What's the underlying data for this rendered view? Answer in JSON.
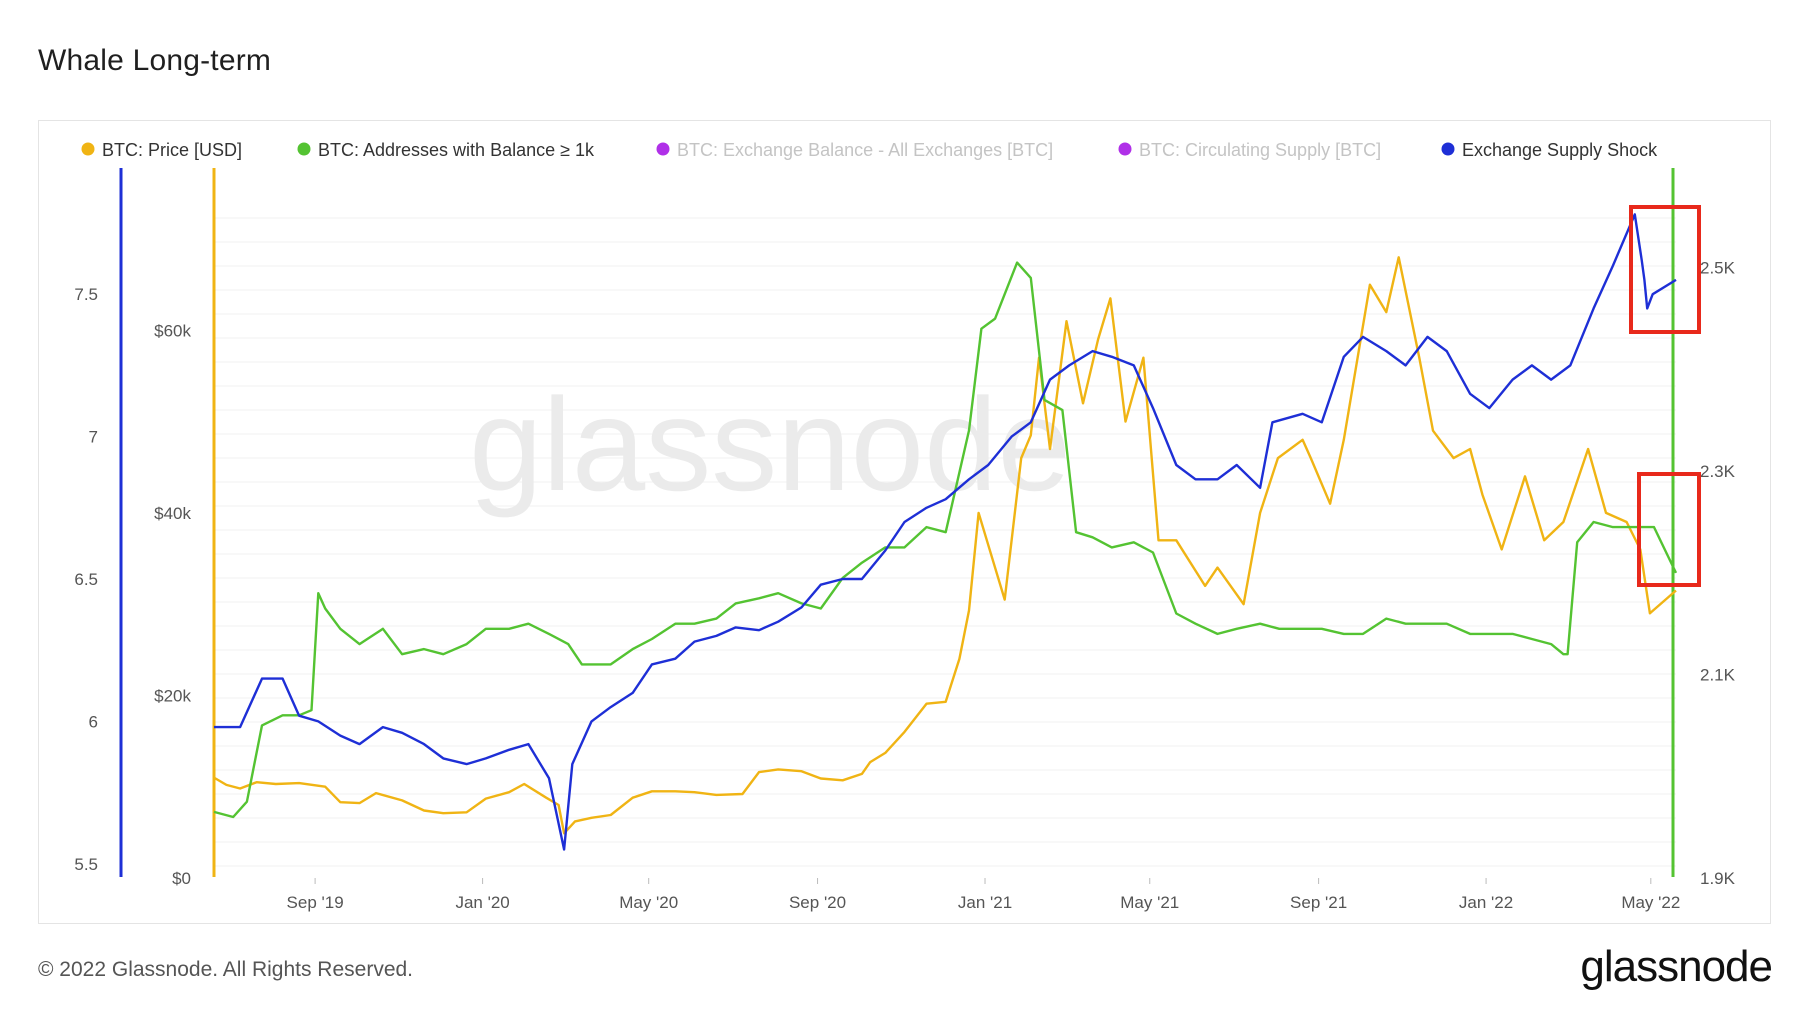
{
  "title": "Whale Long-term",
  "footer": "© 2022 Glassnode. All Rights Reserved.",
  "brand": "glassnode",
  "watermark": "glassnode",
  "chart_data": {
    "type": "line",
    "legend": [
      {
        "label": "BTC: Price [USD]",
        "color": "#f0b414",
        "active": true
      },
      {
        "label": "BTC: Addresses with Balance ≥ 1k",
        "color": "#54c332",
        "active": true
      },
      {
        "label": "BTC: Exchange Balance - All Exchanges [BTC]",
        "color": "#b030e8",
        "active": false
      },
      {
        "label": "BTC: Circulating Supply [BTC]",
        "color": "#b030e8",
        "active": false
      },
      {
        "label": "Exchange Supply Shock",
        "color": "#1e2fd6",
        "active": true
      }
    ],
    "x_ticks": [
      "Sep '19",
      "Jan '20",
      "May '20",
      "Sep '20",
      "Jan '21",
      "May '21",
      "Sep '21",
      "Jan '22",
      "May '22"
    ],
    "axes": {
      "shock": {
        "ticks": [
          "7.5",
          "7",
          "6.5",
          "6",
          "5.5"
        ],
        "range": [
          5.45,
          7.95
        ],
        "color": "#1e2fd6"
      },
      "price": {
        "ticks": [
          "$60k",
          "$40k",
          "$20k",
          "$0"
        ],
        "range": [
          0,
          78000
        ],
        "color": "#f0b414"
      },
      "addresses": {
        "ticks": [
          "2.5K",
          "2.3K",
          "2.1K",
          "1.9K"
        ],
        "range": [
          1900,
          2600
        ],
        "color": "#54c332"
      }
    },
    "x_range": [
      "2019-07-01",
      "2022-05-31"
    ],
    "series": [
      {
        "name": "BTC: Price [USD]",
        "axis": "price",
        "color": "#f0b414",
        "x": [
          "2019-07-01",
          "2019-07-10",
          "2019-07-20",
          "2019-08-01",
          "2019-08-15",
          "2019-09-01",
          "2019-09-20",
          "2019-10-01",
          "2019-10-15",
          "2019-10-27",
          "2019-11-15",
          "2019-12-01",
          "2019-12-15",
          "2020-01-01",
          "2020-01-15",
          "2020-02-01",
          "2020-02-12",
          "2020-02-28",
          "2020-03-08",
          "2020-03-12",
          "2020-03-20",
          "2020-04-01",
          "2020-04-15",
          "2020-05-01",
          "2020-05-15",
          "2020-06-01",
          "2020-06-15",
          "2020-07-01",
          "2020-07-20",
          "2020-08-01",
          "2020-08-15",
          "2020-09-01",
          "2020-09-15",
          "2020-10-01",
          "2020-10-15",
          "2020-10-21",
          "2020-11-01",
          "2020-11-15",
          "2020-12-01",
          "2020-12-15",
          "2020-12-25",
          "2021-01-01",
          "2021-01-08",
          "2021-01-15",
          "2021-01-27",
          "2021-02-08",
          "2021-02-15",
          "2021-02-21",
          "2021-03-01",
          "2021-03-13",
          "2021-03-25",
          "2021-04-05",
          "2021-04-14",
          "2021-04-25",
          "2021-05-08",
          "2021-05-19",
          "2021-06-01",
          "2021-06-22",
          "2021-07-01",
          "2021-07-20",
          "2021-08-01",
          "2021-08-14",
          "2021-09-01",
          "2021-09-07",
          "2021-09-21",
          "2021-10-01",
          "2021-10-20",
          "2021-11-01",
          "2021-11-10",
          "2021-11-25",
          "2021-12-05",
          "2021-12-20",
          "2022-01-01",
          "2022-01-10",
          "2022-01-24",
          "2022-02-10",
          "2022-02-24",
          "2022-03-10",
          "2022-03-28",
          "2022-04-10",
          "2022-04-25",
          "2022-05-05",
          "2022-05-12",
          "2022-05-31"
        ],
        "values": [
          11000,
          10200,
          9800,
          10500,
          10300,
          10400,
          10000,
          8300,
          8200,
          9300,
          8500,
          7400,
          7100,
          7200,
          8700,
          9400,
          10300,
          8800,
          8000,
          4900,
          6200,
          6600,
          6900,
          8800,
          9500,
          9500,
          9400,
          9100,
          9200,
          11600,
          11900,
          11700,
          10900,
          10700,
          11400,
          12700,
          13700,
          16000,
          19100,
          19300,
          24000,
          29300,
          40000,
          36500,
          30500,
          46000,
          48500,
          57000,
          47000,
          61000,
          52000,
          59000,
          63500,
          50000,
          57000,
          37000,
          37000,
          32000,
          34000,
          30000,
          40000,
          46000,
          48000,
          46000,
          41000,
          48000,
          65000,
          62000,
          68000,
          57000,
          49000,
          46000,
          47000,
          42000,
          36000,
          44000,
          37000,
          39000,
          47000,
          40000,
          39000,
          36000,
          29000,
          31500
        ]
      },
      {
        "name": "BTC: Addresses with Balance ≥ 1k",
        "axis": "addresses",
        "color": "#54c332",
        "x": [
          "2019-07-01",
          "2019-07-15",
          "2019-07-25",
          "2019-08-05",
          "2019-08-20",
          "2019-09-01",
          "2019-09-10",
          "2019-09-15",
          "2019-09-20",
          "2019-10-01",
          "2019-10-15",
          "2019-11-01",
          "2019-11-15",
          "2019-12-01",
          "2019-12-15",
          "2020-01-01",
          "2020-01-15",
          "2020-02-01",
          "2020-02-15",
          "2020-03-01",
          "2020-03-15",
          "2020-03-25",
          "2020-04-15",
          "2020-05-01",
          "2020-05-15",
          "2020-06-01",
          "2020-06-15",
          "2020-07-01",
          "2020-07-15",
          "2020-08-01",
          "2020-08-15",
          "2020-09-01",
          "2020-09-15",
          "2020-10-01",
          "2020-10-15",
          "2020-11-01",
          "2020-11-15",
          "2020-12-01",
          "2020-12-15",
          "2021-01-01",
          "2021-01-10",
          "2021-01-20",
          "2021-02-05",
          "2021-02-15",
          "2021-02-25",
          "2021-03-10",
          "2021-03-20",
          "2021-04-01",
          "2021-04-15",
          "2021-05-01",
          "2021-05-15",
          "2021-06-01",
          "2021-06-15",
          "2021-07-01",
          "2021-07-15",
          "2021-08-01",
          "2021-08-15",
          "2021-09-01",
          "2021-09-15",
          "2021-10-01",
          "2021-10-15",
          "2021-11-01",
          "2021-11-15",
          "2021-12-01",
          "2021-12-15",
          "2022-01-01",
          "2022-01-15",
          "2022-02-01",
          "2022-02-15",
          "2022-03-01",
          "2022-03-10",
          "2022-03-13",
          "2022-03-20",
          "2022-04-01",
          "2022-04-15",
          "2022-05-01",
          "2022-05-15",
          "2022-05-31"
        ],
        "values": [
          1965,
          1960,
          1975,
          2050,
          2060,
          2060,
          2065,
          2180,
          2165,
          2145,
          2130,
          2145,
          2120,
          2125,
          2120,
          2130,
          2145,
          2145,
          2150,
          2140,
          2130,
          2110,
          2110,
          2125,
          2135,
          2150,
          2150,
          2155,
          2170,
          2175,
          2180,
          2170,
          2165,
          2195,
          2210,
          2225,
          2225,
          2245,
          2240,
          2340,
          2440,
          2450,
          2505,
          2490,
          2370,
          2360,
          2240,
          2235,
          2225,
          2230,
          2220,
          2160,
          2150,
          2140,
          2145,
          2150,
          2145,
          2145,
          2145,
          2140,
          2140,
          2155,
          2150,
          2150,
          2150,
          2140,
          2140,
          2140,
          2135,
          2130,
          2120,
          2120,
          2230,
          2250,
          2245,
          2245,
          2245,
          2200
        ]
      },
      {
        "name": "Exchange Supply Shock",
        "axis": "shock",
        "color": "#1e2fd6",
        "x": [
          "2019-07-01",
          "2019-07-20",
          "2019-08-05",
          "2019-08-20",
          "2019-09-01",
          "2019-09-15",
          "2019-10-01",
          "2019-10-15",
          "2019-11-01",
          "2019-11-15",
          "2019-12-01",
          "2019-12-15",
          "2020-01-01",
          "2020-01-15",
          "2020-02-01",
          "2020-02-15",
          "2020-03-01",
          "2020-03-12",
          "2020-03-18",
          "2020-04-01",
          "2020-04-15",
          "2020-05-01",
          "2020-05-15",
          "2020-06-01",
          "2020-06-15",
          "2020-07-01",
          "2020-07-15",
          "2020-08-01",
          "2020-08-15",
          "2020-09-01",
          "2020-09-15",
          "2020-10-01",
          "2020-10-15",
          "2020-11-01",
          "2020-11-15",
          "2020-12-01",
          "2020-12-15",
          "2021-01-01",
          "2021-01-15",
          "2021-02-01",
          "2021-02-15",
          "2021-03-01",
          "2021-03-15",
          "2021-04-01",
          "2021-04-15",
          "2021-05-01",
          "2021-05-15",
          "2021-06-01",
          "2021-06-15",
          "2021-07-01",
          "2021-07-15",
          "2021-08-01",
          "2021-08-10",
          "2021-09-01",
          "2021-09-15",
          "2021-10-01",
          "2021-10-15",
          "2021-11-01",
          "2021-11-15",
          "2021-12-01",
          "2021-12-15",
          "2022-01-01",
          "2022-01-15",
          "2022-02-01",
          "2022-02-15",
          "2022-03-01",
          "2022-03-15",
          "2022-04-01",
          "2022-04-15",
          "2022-05-01",
          "2022-05-06",
          "2022-05-08",
          "2022-05-10",
          "2022-05-14",
          "2022-05-31"
        ],
        "values": [
          5.98,
          5.98,
          6.15,
          6.15,
          6.02,
          6.0,
          5.95,
          5.92,
          5.98,
          5.96,
          5.92,
          5.87,
          5.85,
          5.87,
          5.9,
          5.92,
          5.8,
          5.55,
          5.85,
          6.0,
          6.05,
          6.1,
          6.2,
          6.22,
          6.28,
          6.3,
          6.33,
          6.32,
          6.35,
          6.4,
          6.48,
          6.5,
          6.5,
          6.6,
          6.7,
          6.75,
          6.78,
          6.85,
          6.9,
          7.0,
          7.05,
          7.2,
          7.25,
          7.3,
          7.28,
          7.25,
          7.1,
          6.9,
          6.85,
          6.85,
          6.9,
          6.82,
          7.05,
          7.08,
          7.05,
          7.28,
          7.35,
          7.3,
          7.25,
          7.35,
          7.3,
          7.15,
          7.1,
          7.2,
          7.25,
          7.2,
          7.25,
          7.45,
          7.6,
          7.78,
          7.62,
          7.55,
          7.45,
          7.5,
          7.55
        ]
      }
    ]
  }
}
